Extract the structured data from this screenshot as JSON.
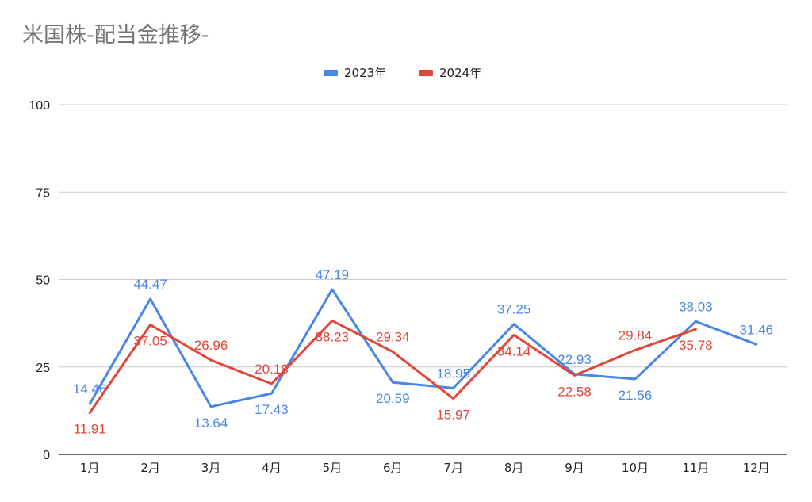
{
  "chart_data": {
    "type": "line",
    "title": "米国株-配当金推移-",
    "categories": [
      "1月",
      "2月",
      "3月",
      "4月",
      "5月",
      "6月",
      "7月",
      "8月",
      "9月",
      "10月",
      "11月",
      "12月"
    ],
    "series": [
      {
        "name": "2023年",
        "color": "#4a86e8",
        "values": [
          14.46,
          44.47,
          13.64,
          17.43,
          47.19,
          20.59,
          18.95,
          37.25,
          22.93,
          21.56,
          38.03,
          31.46
        ]
      },
      {
        "name": "2024年",
        "color": "#e2463a",
        "values": [
          11.91,
          37.05,
          26.96,
          20.18,
          38.23,
          29.34,
          15.97,
          34.14,
          22.58,
          29.84,
          35.78,
          null
        ]
      }
    ],
    "ylim": [
      0,
      100
    ],
    "yticks": [
      0,
      25,
      50,
      75,
      100
    ],
    "grid": true,
    "legend": "top-center",
    "xlabel": "",
    "ylabel": ""
  }
}
